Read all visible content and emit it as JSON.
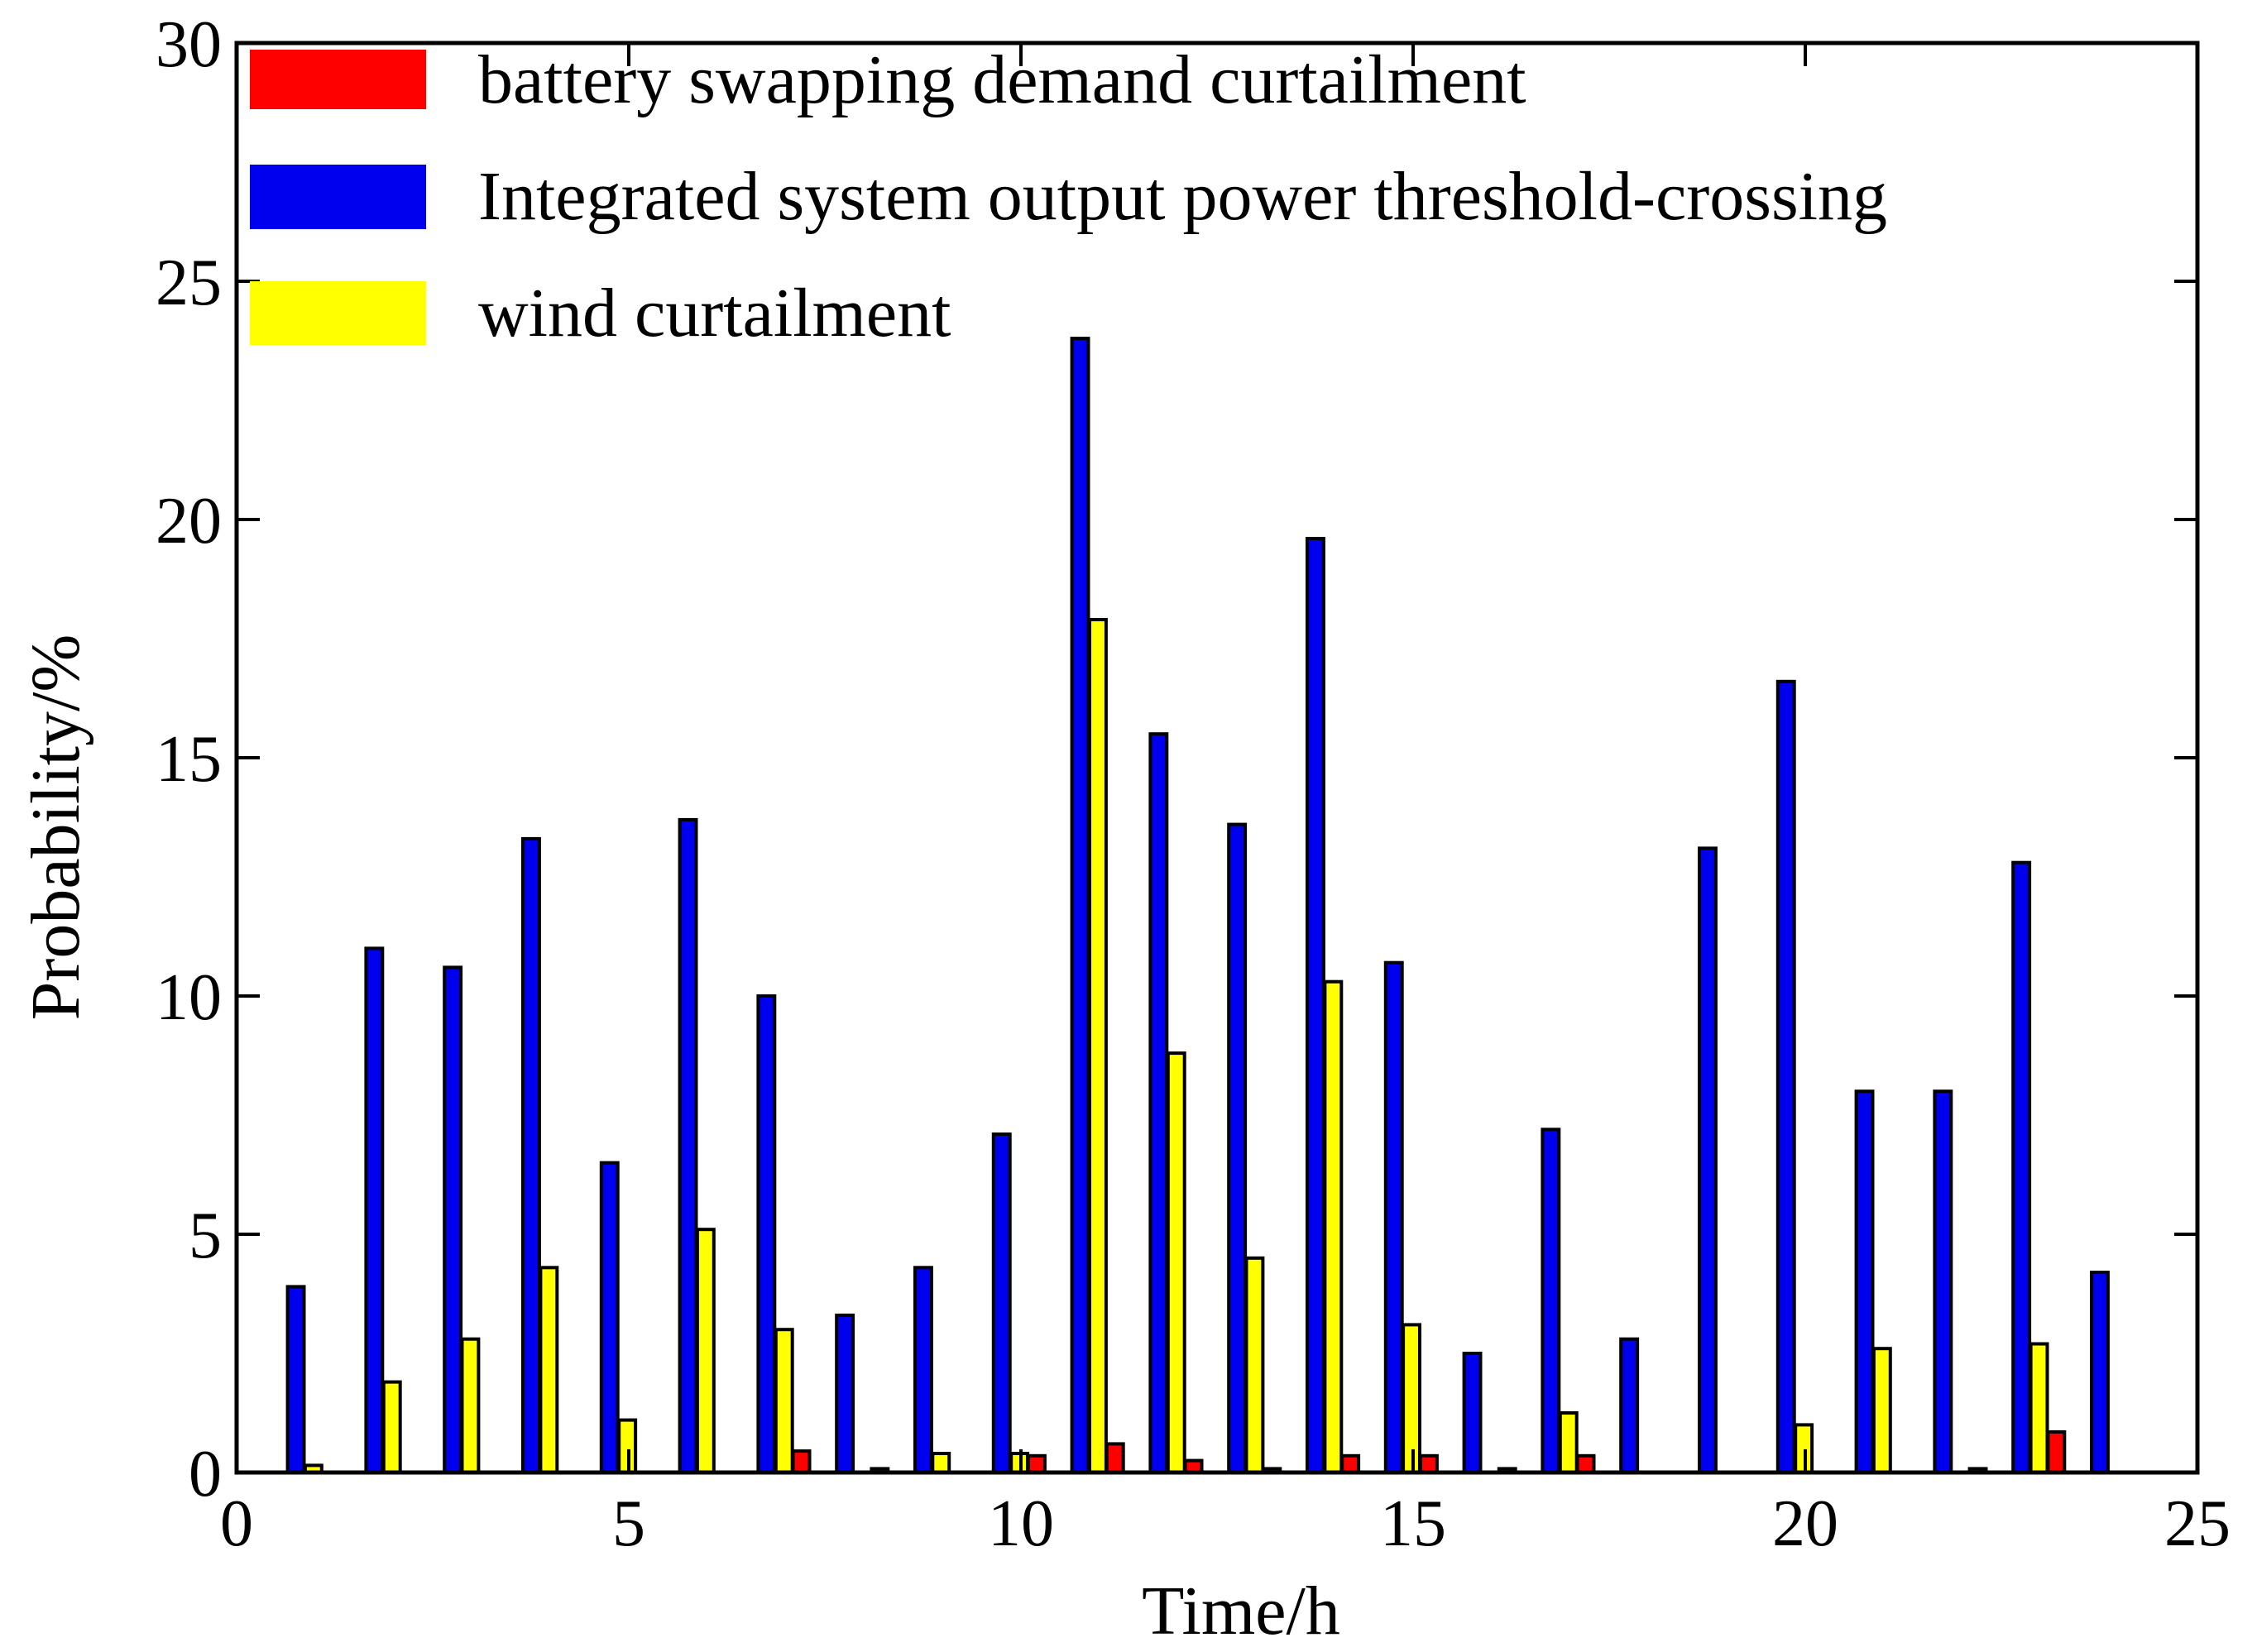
{
  "chart_data": {
    "type": "bar",
    "title": "",
    "xlabel": "Time/h",
    "ylabel": "Probability/%",
    "xlim": [
      0,
      25
    ],
    "ylim": [
      0,
      30
    ],
    "xticks": [
      "0",
      "5",
      "10",
      "15",
      "20",
      "25"
    ],
    "yticks": [
      "0",
      "5",
      "10",
      "15",
      "20",
      "25",
      "30"
    ],
    "legend_position": "top-left",
    "categories": [
      1,
      2,
      3,
      4,
      5,
      6,
      7,
      8,
      9,
      10,
      11,
      12,
      13,
      14,
      15,
      16,
      17,
      18,
      19,
      20,
      21,
      22,
      23,
      24
    ],
    "series": [
      {
        "name": "Integrated system output power threshold-crossing",
        "color": "#0000ee",
        "values": [
          3.9,
          11.0,
          10.6,
          13.3,
          6.5,
          13.7,
          10.0,
          3.3,
          4.3,
          7.1,
          23.8,
          15.5,
          13.6,
          19.6,
          10.7,
          2.5,
          7.2,
          2.8,
          13.1,
          16.6,
          8.0,
          8.0,
          12.8,
          4.2
        ]
      },
      {
        "name": "wind curtailment",
        "color": "#ffff00",
        "values": [
          0.15,
          1.9,
          2.8,
          4.3,
          1.1,
          5.1,
          3.0,
          0,
          0.4,
          0.4,
          17.9,
          8.8,
          4.5,
          10.3,
          3.1,
          0,
          1.25,
          0,
          0,
          1.0,
          2.6,
          0,
          2.7,
          0
        ]
      },
      {
        "name": "battery swapping demand curtailment",
        "color": "#ff0000",
        "values": [
          0,
          0,
          0,
          0,
          0,
          0,
          0.45,
          0.08,
          0,
          0.35,
          0.6,
          0.25,
          0.08,
          0.35,
          0.35,
          0.08,
          0.35,
          0,
          0,
          0,
          0,
          0.08,
          0.85,
          0
        ]
      }
    ],
    "legend": [
      {
        "label": "battery swapping demand curtailment",
        "color": "#ff0000"
      },
      {
        "label": "Integrated system output power threshold-crossing",
        "color": "#0000ee"
      },
      {
        "label": "wind curtailment",
        "color": "#ffff00"
      }
    ]
  }
}
